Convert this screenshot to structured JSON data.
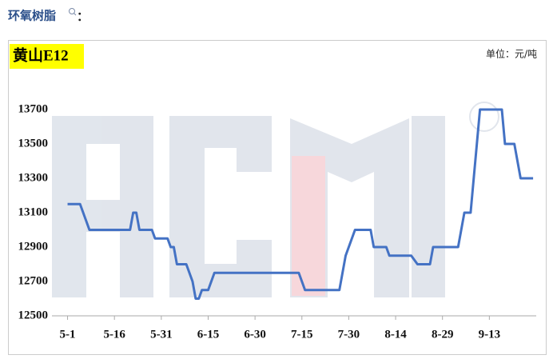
{
  "heading": "环氧树脂",
  "heading_colon": "：",
  "chart_data": {
    "type": "line",
    "title": "黄山E12",
    "unit": "单位：元/吨",
    "x": [
      0,
      4,
      7,
      20,
      21,
      22,
      23,
      27,
      28,
      32,
      33,
      34,
      35,
      38,
      40,
      41,
      42,
      43,
      45,
      47,
      74,
      76,
      87,
      89,
      91,
      92,
      97,
      98,
      102,
      103,
      110,
      112,
      116,
      117,
      125,
      127,
      129,
      131,
      132,
      139,
      140,
      143,
      145,
      149
    ],
    "series": [
      {
        "name": "黄山E12",
        "color": "#4472c4",
        "values": [
          13150,
          13150,
          13000,
          13000,
          13100,
          13100,
          13000,
          13000,
          12950,
          12950,
          12900,
          12900,
          12800,
          12800,
          12700,
          12600,
          12600,
          12650,
          12650,
          12750,
          12750,
          12650,
          12650,
          12850,
          12950,
          13000,
          13000,
          12900,
          12900,
          12850,
          12850,
          12800,
          12800,
          12900,
          12900,
          13100,
          13100,
          13500,
          13700,
          13700,
          13500,
          13500,
          13300,
          13300
        ]
      }
    ],
    "xlim": [
      -5,
      150
    ],
    "xticks": [
      {
        "value": 0,
        "label": "5-1"
      },
      {
        "value": 15,
        "label": "5-16"
      },
      {
        "value": 30,
        "label": "5-31"
      },
      {
        "value": 45,
        "label": "6-15"
      },
      {
        "value": 60,
        "label": "6-30"
      },
      {
        "value": 75,
        "label": "7-15"
      },
      {
        "value": 90,
        "label": "7-30"
      },
      {
        "value": 105,
        "label": "8-14"
      },
      {
        "value": 120,
        "label": "8-29"
      },
      {
        "value": 135,
        "label": "9-13"
      }
    ],
    "ylim": [
      12500,
      13700
    ],
    "yticks": [
      12500,
      12700,
      12900,
      13100,
      13300,
      13500,
      13700
    ]
  }
}
